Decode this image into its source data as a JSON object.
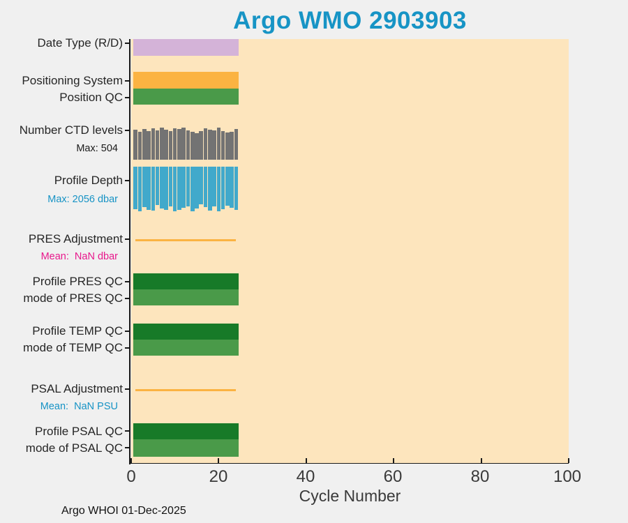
{
  "page": {
    "title": "Argo WMO 2903903",
    "footer": "Argo WHOI 01-Dec-2025"
  },
  "chart_data": {
    "type": "bar",
    "orientation": "horizontal-status-rows",
    "title": "Argo WMO 2903903",
    "xlabel": "Cycle Number",
    "xlim": [
      0,
      100
    ],
    "xticks": [
      0,
      20,
      40,
      60,
      80,
      100
    ],
    "cycles_plotted": 24,
    "plot_bg_color": "#fde5bd",
    "title_color": "#1794c5",
    "axis_color": "#1a1a1a",
    "label_color": "#262626",
    "footer": "Argo WHOI 01-Dec-2025",
    "rows": [
      {
        "id": "date_type",
        "label": "Date Type (R/D)",
        "kind": "band",
        "color": "#d4b3d8",
        "x_extent": [
          0.5,
          24.5
        ]
      },
      {
        "id": "positioning_system",
        "label": "Positioning System",
        "kind": "band",
        "color": "#fbb342",
        "x_extent": [
          0.5,
          24.5
        ]
      },
      {
        "id": "position_qc",
        "label": "Position QC",
        "kind": "band",
        "color": "#4a9a49",
        "x_extent": [
          0.5,
          24.5
        ]
      },
      {
        "id": "ctd_levels",
        "label": "Number CTD levels",
        "sublabel": "Max: 504",
        "sublabel_color": "#1a1a1a",
        "kind": "bars-up",
        "color": "#737373",
        "max": 504,
        "values": [
          472,
          440,
          483,
          451,
          493,
          461,
          504,
          472,
          451,
          493,
          483,
          504,
          461,
          440,
          418,
          451,
          493,
          472,
          461,
          504,
          451,
          429,
          440,
          483
        ]
      },
      {
        "id": "profile_depth",
        "label": "Profile Depth",
        "sublabel": "Max: 2056 dbar",
        "sublabel_color": "#1793c5",
        "kind": "bars-down",
        "color": "#41a9cb",
        "max": 2056,
        "values": [
          1960,
          2056,
          1863,
          1992,
          2024,
          1767,
          1928,
          1992,
          1831,
          2056,
          1992,
          1896,
          1831,
          2056,
          1928,
          1735,
          1863,
          2024,
          1831,
          2056,
          1960,
          1799,
          1896,
          1992
        ]
      },
      {
        "id": "pres_adjustment",
        "label": "PRES Adjustment",
        "sublabel": "Mean:  NaN dbar",
        "sublabel_color": "#e8188c",
        "kind": "line",
        "color": "#fbb342",
        "x_extent": [
          1,
          24
        ]
      },
      {
        "id": "profile_pres_qc",
        "label": "Profile PRES QC",
        "kind": "band",
        "color": "#177a28",
        "x_extent": [
          0.5,
          24.5
        ]
      },
      {
        "id": "mode_pres_qc",
        "label": "mode of PRES QC",
        "kind": "band",
        "color": "#4a9a49",
        "x_extent": [
          0.5,
          24.5
        ]
      },
      {
        "id": "profile_temp_qc",
        "label": "Profile TEMP QC",
        "kind": "band",
        "color": "#177a28",
        "x_extent": [
          0.5,
          24.5
        ]
      },
      {
        "id": "mode_temp_qc",
        "label": "mode of TEMP QC",
        "kind": "band",
        "color": "#4a9a49",
        "x_extent": [
          0.5,
          24.5
        ]
      },
      {
        "id": "psal_adjustment",
        "label": "PSAL Adjustment",
        "sublabel": "Mean:  NaN PSU",
        "sublabel_color": "#1793c5",
        "kind": "line",
        "color": "#fbb342",
        "x_extent": [
          1,
          24
        ]
      },
      {
        "id": "profile_psal_qc",
        "label": "Profile PSAL QC",
        "kind": "band",
        "color": "#177a28",
        "x_extent": [
          0.5,
          24.5
        ]
      },
      {
        "id": "mode_psal_qc",
        "label": "mode of PSAL QC",
        "kind": "band",
        "color": "#4a9a49",
        "x_extent": [
          0.5,
          24.5
        ]
      }
    ]
  }
}
